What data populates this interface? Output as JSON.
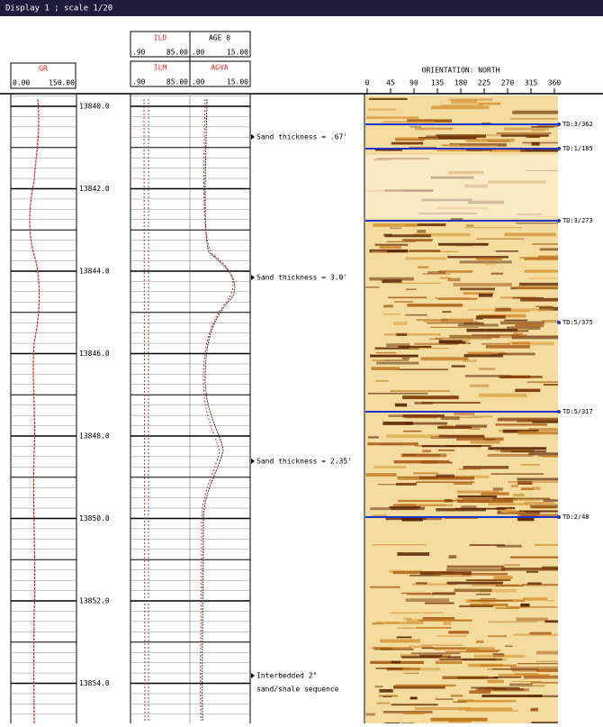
{
  "window": {
    "title": "Display 1 ; scale 1/20"
  },
  "tracks": {
    "gr": {
      "name": "GR",
      "min": "0.00",
      "max": "150.00"
    },
    "resistivity": [
      {
        "name": "ILD",
        "min": ".90",
        "max": "85.00"
      },
      {
        "name": "ILM",
        "min": ".90",
        "max": "85.00"
      }
    ],
    "other": [
      {
        "name": "AGE 0",
        "min": ".00",
        "max": "15.00"
      },
      {
        "name": "AGVA",
        "min": ".00",
        "max": "15.00"
      }
    ]
  },
  "depths": [
    "13840.0",
    "13842.0",
    "13844.0",
    "13846.0",
    "13848.0",
    "13850.0",
    "13852.0",
    "13854.0"
  ],
  "annotations": [
    "Sand thickness = .67'",
    "Sand thickness = 3.0'",
    "Sand thickness = 2.35'",
    "Interbedded 2\"",
    "sand/shale sequence"
  ],
  "image": {
    "title": "ORIENTATION: NORTH",
    "azimuth_ticks": [
      "0",
      "45",
      "90",
      "135",
      "180",
      "225",
      "270",
      "315",
      "360"
    ]
  },
  "markers": [
    "TD:3/362",
    "TD:1/185",
    "TD:3/273",
    "TD:5/375",
    "TD:5/317",
    "TD:2/48"
  ]
}
